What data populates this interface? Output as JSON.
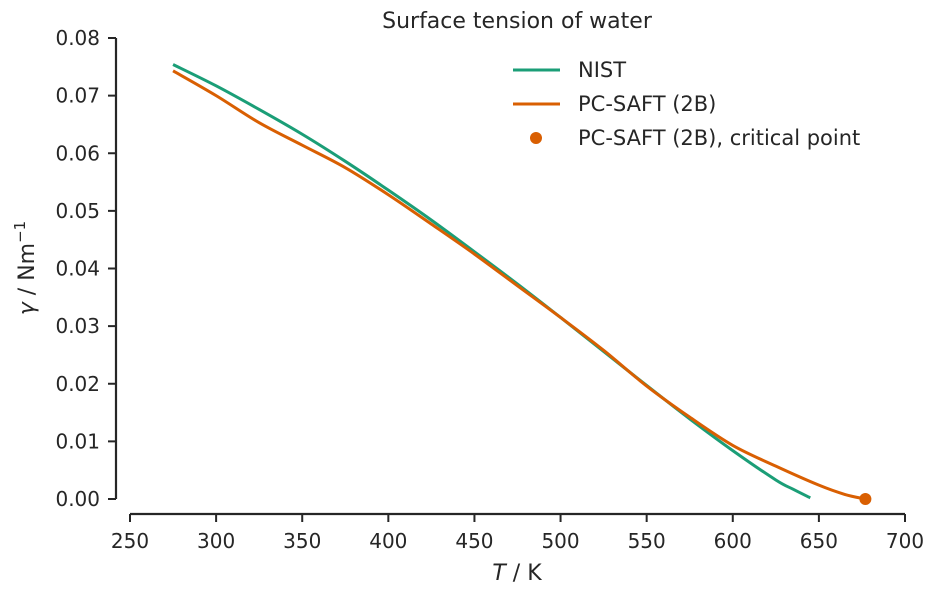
{
  "chart_data": {
    "type": "line",
    "title": "Surface tension of water",
    "xlabel_italic": "T",
    "xlabel_rest": " / K",
    "ylabel_italic": "γ",
    "ylabel_rest": " / Nm",
    "ylabel_sup": "−1",
    "xlim": [
      250,
      700
    ],
    "ylim": [
      0,
      0.08
    ],
    "xticks": [
      250,
      300,
      350,
      400,
      450,
      500,
      550,
      600,
      650,
      700
    ],
    "yticks": [
      "0.00",
      "0.01",
      "0.02",
      "0.03",
      "0.04",
      "0.05",
      "0.06",
      "0.07",
      "0.08"
    ],
    "grid": false,
    "legend_position": "top-right",
    "series": [
      {
        "name": "NIST",
        "kind": "line",
        "color": "#1b9e77",
        "x": [
          275,
          300,
          325,
          350,
          375,
          400,
          425,
          450,
          475,
          500,
          525,
          550,
          575,
          600,
          625,
          635,
          645
        ],
        "y": [
          0.0754,
          0.0717,
          0.0676,
          0.0633,
          0.0586,
          0.0536,
          0.0484,
          0.0429,
          0.0373,
          0.0315,
          0.0256,
          0.0197,
          0.0139,
          0.0084,
          0.0033,
          0.0017,
          0.0002
        ]
      },
      {
        "name": "PC-SAFT (2B)",
        "kind": "line",
        "color": "#d95f02",
        "x": [
          275,
          300,
          325,
          350,
          375,
          400,
          425,
          450,
          475,
          500,
          525,
          550,
          575,
          600,
          625,
          650,
          665,
          677
        ],
        "y": [
          0.0743,
          0.07,
          0.0653,
          0.0614,
          0.0575,
          0.0528,
          0.0477,
          0.0425,
          0.037,
          0.0315,
          0.0258,
          0.0196,
          0.0142,
          0.0093,
          0.0057,
          0.0024,
          0.0008,
          0.0
        ]
      },
      {
        "name": "PC-SAFT (2B), critical point",
        "kind": "scatter",
        "color": "#d95f02",
        "x": [
          677
        ],
        "y": [
          0.0
        ]
      }
    ]
  }
}
